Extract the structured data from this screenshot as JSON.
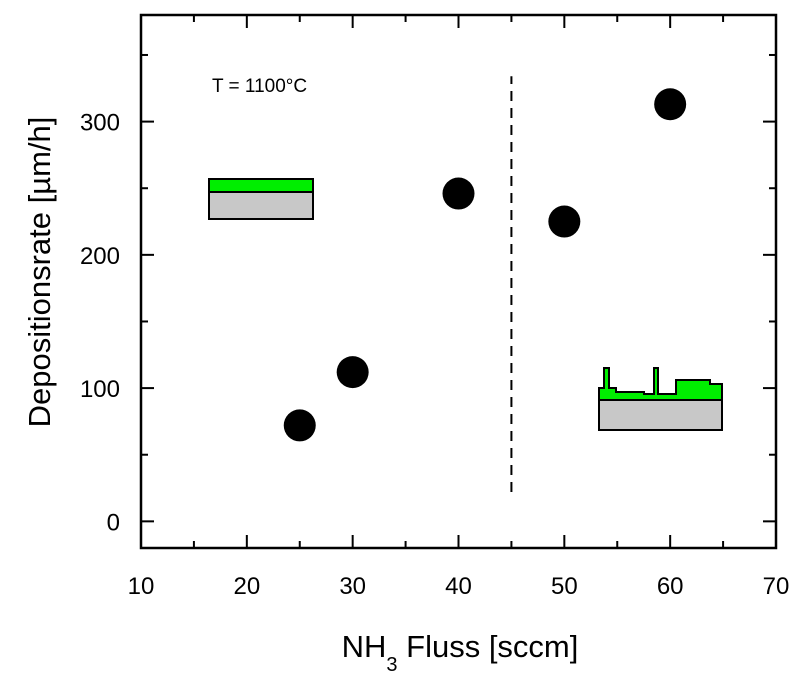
{
  "chart_data": {
    "type": "scatter",
    "xlabel_parts": [
      "NH",
      "3",
      " Fluss [sccm]"
    ],
    "ylabel": "Depositionsrate [µm/h]",
    "annotation": "T = 1100°C",
    "x": [
      25,
      30,
      40,
      50,
      60
    ],
    "values": [
      72,
      112,
      246,
      225,
      313
    ],
    "color": "#000000",
    "xlim": [
      10,
      70
    ],
    "ylim": [
      -20,
      380
    ],
    "xticks": [
      10,
      20,
      30,
      40,
      50,
      60,
      70
    ],
    "yticks": [
      0,
      100,
      200,
      300
    ],
    "vline": {
      "x": 45,
      "ymin": 22,
      "ymax": 334
    }
  }
}
